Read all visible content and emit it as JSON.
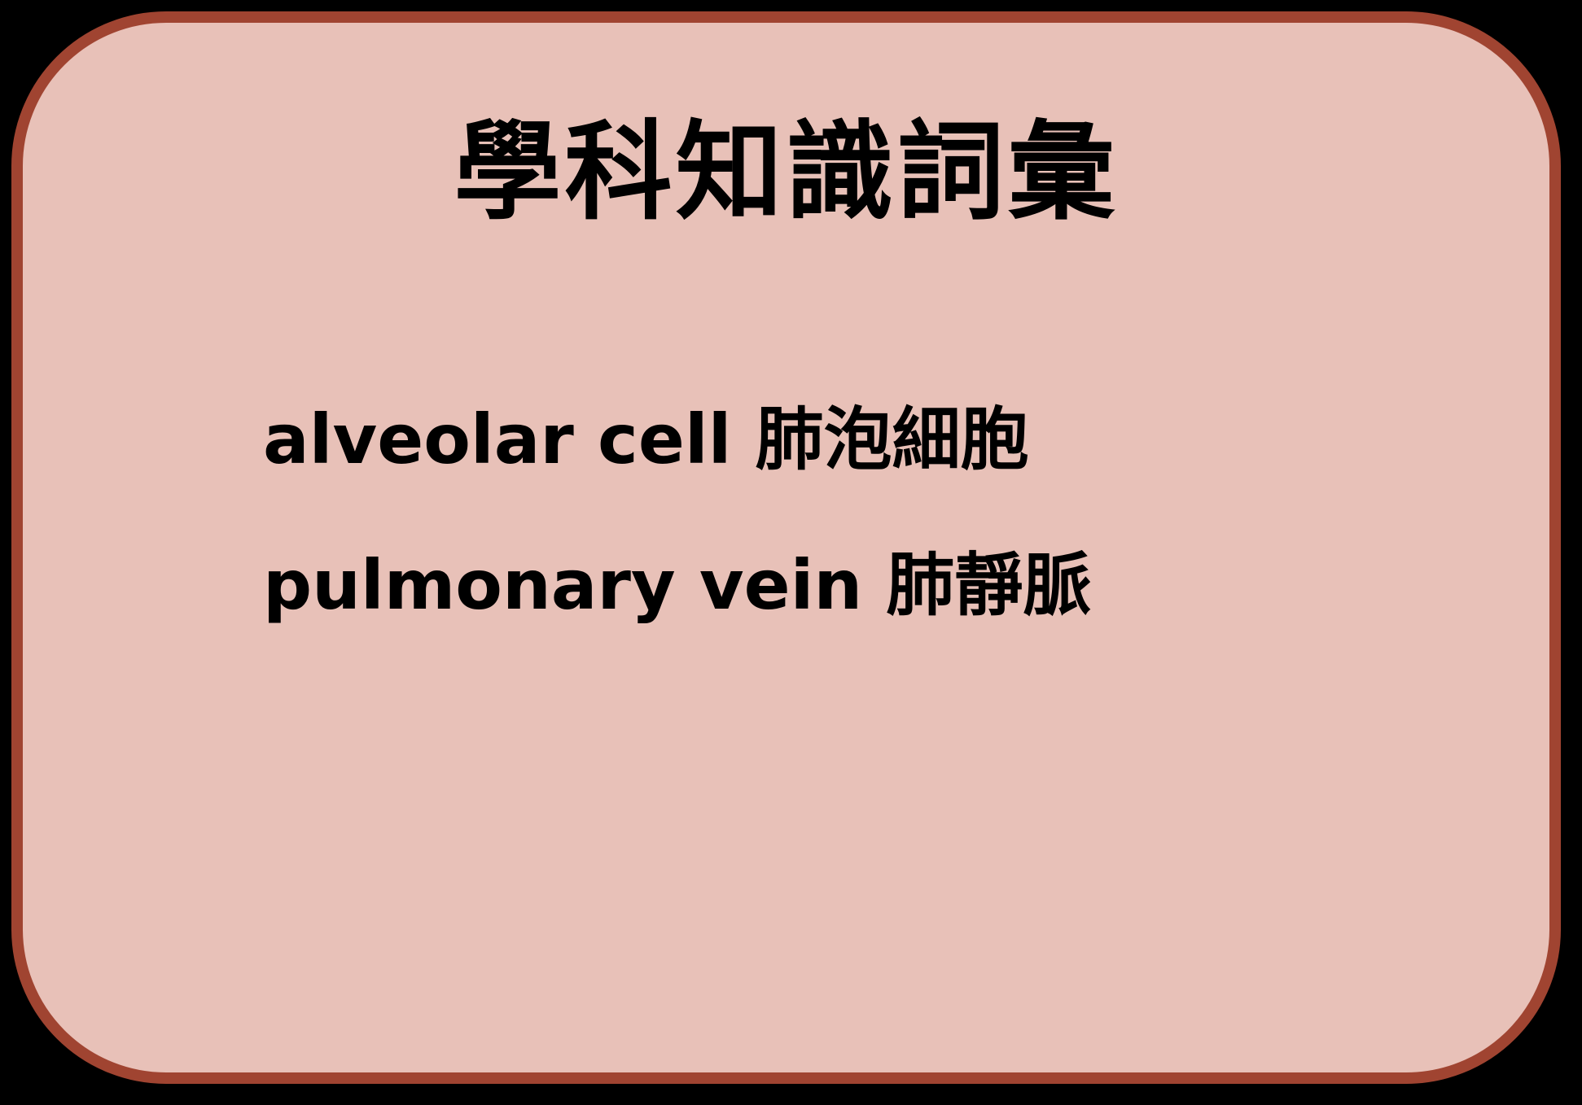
{
  "card": {
    "title": "學科知識詞彙",
    "vocabulary": [
      "alveolar cell 肺泡細胞",
      "pulmonary vein 肺靜脈"
    ]
  },
  "colors": {
    "border": "#a04431",
    "fill": "#e8c1b8",
    "text": "#000000",
    "background": "#000000"
  }
}
